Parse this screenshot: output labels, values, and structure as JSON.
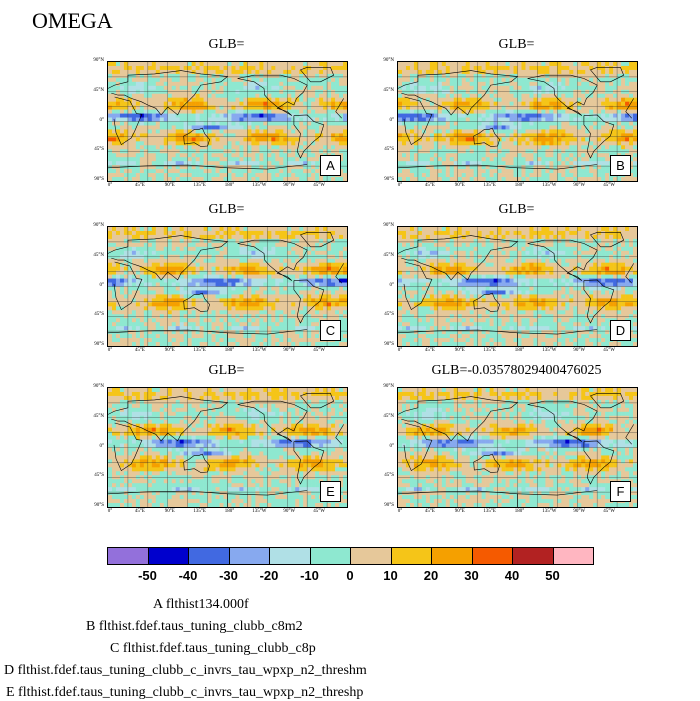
{
  "figure_title": "OMEGA",
  "panels": [
    {
      "title": "GLB=",
      "tag": "A"
    },
    {
      "title": "GLB=",
      "tag": "B"
    },
    {
      "title": "GLB=",
      "tag": "C"
    },
    {
      "title": "GLB=",
      "tag": "D"
    },
    {
      "title": "GLB=",
      "tag": "E"
    },
    {
      "title": "GLB=-0.0357802940047602​5",
      "tag": "F"
    }
  ],
  "lat_labels": [
    "90°N",
    "45°N",
    "0°",
    "45°S",
    "90°S"
  ],
  "lon_labels": [
    "0°",
    "45°E",
    "90°E",
    "135°E",
    "180°",
    "135°W",
    "90°W",
    "45°W"
  ],
  "colorbar": {
    "colors": [
      "#9370db",
      "#0000cd",
      "#4169e1",
      "#87a9ef",
      "#b0e0e6",
      "#8ee8d0",
      "#e6c89a",
      "#f5c518",
      "#f5a000",
      "#f55a00",
      "#b22222",
      "#ffb6c1"
    ],
    "labels": [
      "-50",
      "-40",
      "-30",
      "-20",
      "-10",
      "0",
      "10",
      "20",
      "30",
      "40",
      "50"
    ]
  },
  "legend": [
    "A  flthist134.000f",
    "B  flthist.fdef.taus_tuning_clubb_c8m2",
    "C  flthist.fdef.taus_tuning_clubb_c8p",
    "D  flthist.fdef.taus_tuning_clubb_c_invrs_tau_wpxp_n2_threshm",
    "E  flthist.fdef.taus_tuning_clubb_c_invrs_tau_wpxp_n2_threshp"
  ]
}
